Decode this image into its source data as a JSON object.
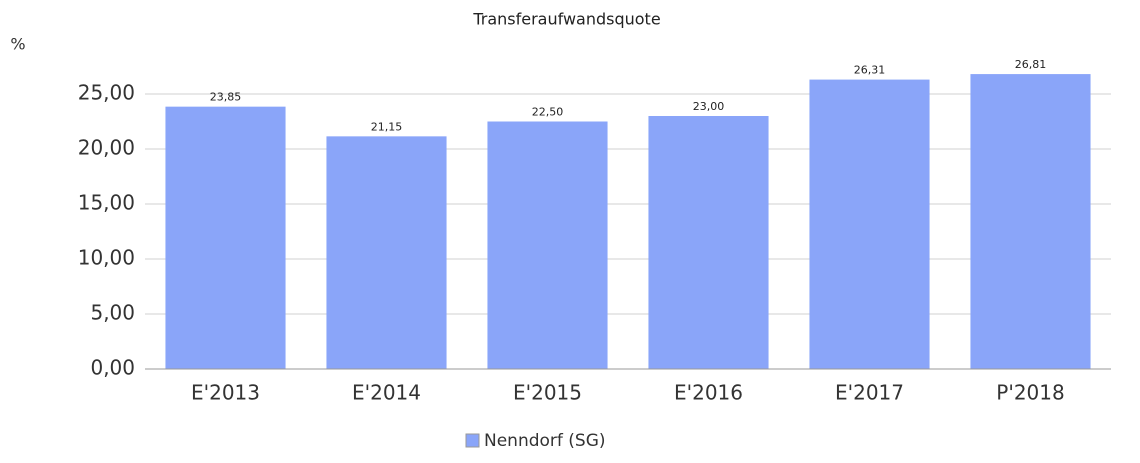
{
  "chart_data": {
    "type": "bar",
    "title": "Transferaufwandsquote",
    "y_label": "%",
    "categories": [
      "E'2013",
      "E'2014",
      "E'2015",
      "E'2016",
      "E'2017",
      "P'2018"
    ],
    "series": [
      {
        "name": "Nenndorf (SG)",
        "color": "#8aa5f9",
        "values": [
          23.85,
          21.15,
          22.5,
          23.0,
          26.31,
          26.81
        ],
        "value_labels": [
          "23,85",
          "21,15",
          "22,50",
          "23,00",
          "26,31",
          "26,81"
        ]
      }
    ],
    "ylim": [
      0,
      28
    ],
    "yticks": [
      {
        "value": 0,
        "label": "0,00"
      },
      {
        "value": 5,
        "label": "5,00"
      },
      {
        "value": 10,
        "label": "10,00"
      },
      {
        "value": 15,
        "label": "15,00"
      },
      {
        "value": 20,
        "label": "20,00"
      },
      {
        "value": 25,
        "label": "25,00"
      }
    ],
    "grid": true
  }
}
